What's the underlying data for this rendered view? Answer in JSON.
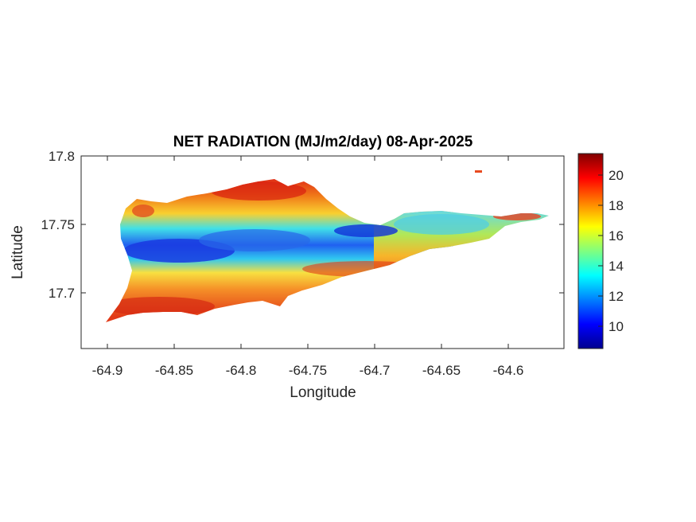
{
  "title": "NET RADIATION (MJ/m2/day) 08-Apr-2025",
  "xlabel": "Longitude",
  "ylabel": "Latitude",
  "x_ticks": [
    "-64.9",
    "-64.85",
    "-64.8",
    "-64.75",
    "-64.7",
    "-64.65",
    "-64.6"
  ],
  "y_ticks": [
    "17.8",
    "17.75",
    "17.7"
  ],
  "colorbar": {
    "colormap": "jet",
    "range": [
      8.5,
      21.5
    ],
    "ticks": [
      "10",
      "12",
      "14",
      "16",
      "18",
      "20"
    ]
  },
  "colors": {
    "high": "#e8301a",
    "mid": "#f9c00f",
    "low": "#2040e0"
  },
  "chart_data": {
    "type": "heatmap",
    "title": "NET RADIATION (MJ/m2/day) 08-Apr-2025",
    "xlabel": "Longitude",
    "ylabel": "Latitude",
    "xlim": [
      -64.92,
      -64.555
    ],
    "ylim": [
      17.657,
      17.8
    ],
    "colorbar_range": [
      8.5,
      21.5
    ],
    "value_pattern": "low values (9-13) along central east-west band of island; high values (18-21) along southern coast and northern ridge",
    "grid": false
  }
}
